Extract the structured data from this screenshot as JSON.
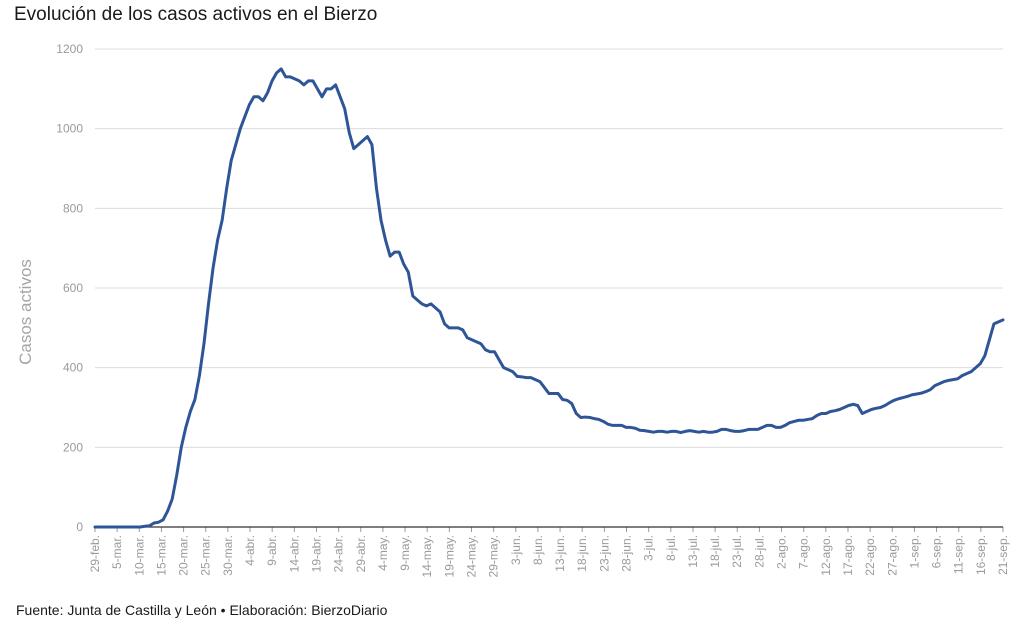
{
  "chart_data": {
    "type": "line",
    "title": "Evolución de los casos activos en el Bierzo",
    "ylabel": "Casos activos",
    "xlabel": "",
    "ylim": [
      0,
      1200
    ],
    "yticks": [
      0,
      200,
      400,
      600,
      800,
      1000,
      1200
    ],
    "grid": "horizontal",
    "source": "Fuente: Junta de Castilla y León • Elaboración: BierzoDiario",
    "xtick_labels": [
      "29-feb.",
      "5-mar.",
      "10-mar.",
      "15-mar.",
      "20-mar.",
      "25-mar.",
      "30-mar.",
      "4-abr.",
      "9-abr.",
      "14-abr.",
      "19-abr.",
      "24-abr.",
      "29-abr.",
      "4-may.",
      "9-may.",
      "14-may.",
      "19-may.",
      "24-may.",
      "29-may.",
      "3-jun.",
      "8-jun.",
      "13-jun.",
      "18-jun.",
      "23-jun.",
      "28-jun.",
      "3-jul.",
      "8-jul.",
      "13-jul.",
      "18-jul.",
      "23-jul.",
      "28-jul.",
      "2-ago.",
      "7-ago.",
      "12-ago.",
      "17-ago.",
      "22-ago.",
      "27-ago.",
      "1-sep.",
      "6-sep.",
      "11-sep.",
      "16-sep.",
      "21-sep."
    ],
    "series": [
      {
        "color": "#2e5597",
        "values": [
          0,
          0,
          0,
          0,
          0,
          0,
          0,
          0,
          0,
          0,
          0,
          2,
          3,
          10,
          12,
          18,
          40,
          70,
          130,
          200,
          250,
          290,
          320,
          380,
          460,
          560,
          650,
          720,
          770,
          850,
          920,
          960,
          1000,
          1030,
          1060,
          1080,
          1080,
          1070,
          1090,
          1120,
          1140,
          1150,
          1130,
          1130,
          1125,
          1120,
          1110,
          1120,
          1120,
          1100,
          1080,
          1100,
          1100,
          1110,
          1080,
          1050,
          990,
          950,
          960,
          970,
          980,
          960,
          850,
          770,
          720,
          680,
          690,
          690,
          660,
          640,
          580,
          570,
          560,
          555,
          560,
          550,
          540,
          510,
          500,
          500,
          500,
          495,
          475,
          470,
          465,
          460,
          445,
          440,
          440,
          420,
          400,
          395,
          390,
          378,
          377,
          375,
          375,
          370,
          365,
          350,
          335,
          335,
          335,
          320,
          318,
          310,
          285,
          275,
          276,
          275,
          272,
          270,
          265,
          258,
          255,
          255,
          255,
          250,
          250,
          248,
          243,
          242,
          240,
          238,
          240,
          240,
          238,
          240,
          240,
          237,
          240,
          242,
          240,
          238,
          240,
          238,
          238,
          240,
          245,
          245,
          242,
          240,
          240,
          242,
          245,
          245,
          245,
          250,
          255,
          255,
          250,
          250,
          255,
          262,
          265,
          268,
          268,
          270,
          272,
          280,
          285,
          285,
          290,
          292,
          295,
          300,
          305,
          308,
          305,
          285,
          290,
          295,
          298,
          300,
          305,
          312,
          318,
          322,
          325,
          328,
          332,
          334,
          336,
          340,
          345,
          355,
          360,
          365,
          368,
          370,
          372,
          380,
          385,
          390,
          400,
          410,
          430,
          470,
          510,
          515,
          520
        ]
      }
    ]
  }
}
